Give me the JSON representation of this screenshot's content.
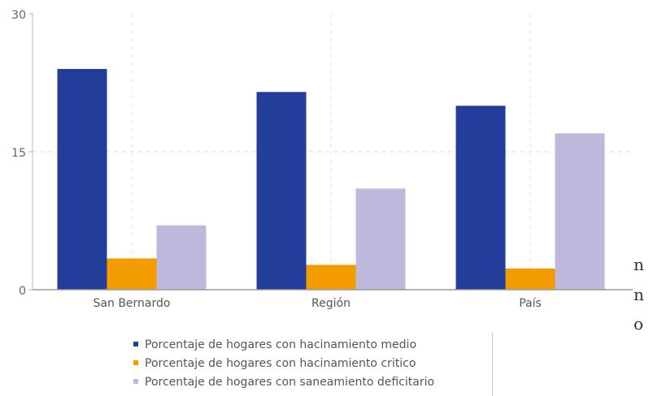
{
  "chart_data": {
    "type": "bar",
    "categories": [
      "San Bernardo",
      "Región",
      "País"
    ],
    "series": [
      {
        "name": "Porcentaje de hogares con hacinamiento medio",
        "values": [
          24.0,
          21.5,
          20.0
        ],
        "color": "#223e9a"
      },
      {
        "name": "Porcentaje de hogares con hacinamiento critico",
        "values": [
          3.4,
          2.7,
          2.3
        ],
        "color": "#f39c00"
      },
      {
        "name": "Porcentaje de hogares con saneamiento deficitario",
        "values": [
          7.0,
          11.0,
          17.0
        ],
        "color": "#bdb8dc"
      }
    ],
    "y_ticks": [
      "0",
      "15",
      "30"
    ],
    "ylim": [
      0,
      30
    ],
    "grid": true,
    "legend": "bottom"
  },
  "side_chars": [
    "n",
    "n",
    "o"
  ]
}
